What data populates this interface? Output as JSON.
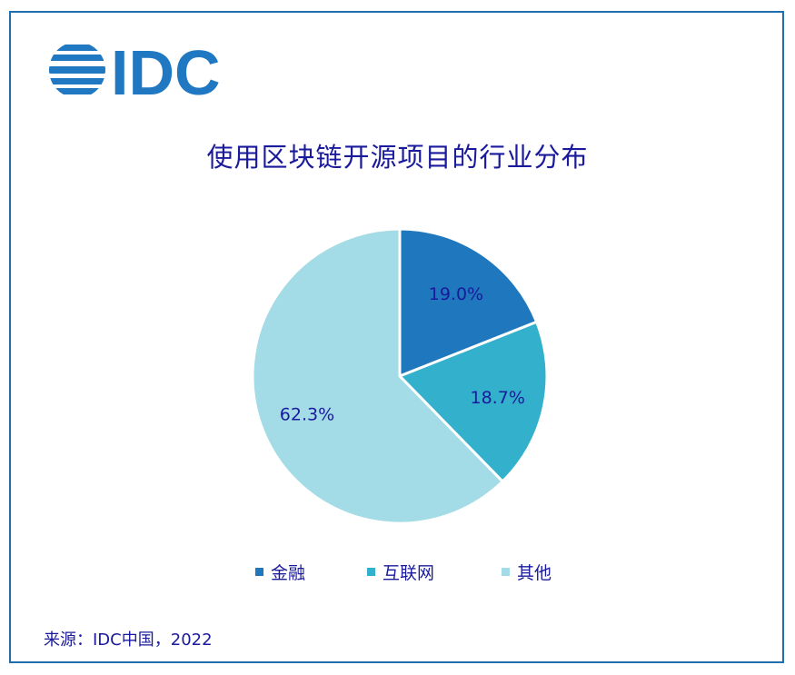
{
  "logo_text": "IDC",
  "title": "使用区块链开源项目的行业分布",
  "source": "来源：IDC中国，2022",
  "colors": {
    "border": "#1f6fae",
    "logo": "#1f78c1",
    "text": "#1a1a9c"
  },
  "chart_data": {
    "type": "pie",
    "title": "使用区块链开源项目的行业分布",
    "slices": [
      {
        "label": "金融",
        "value": 19.0,
        "display": "19.0%",
        "color": "#1f78bd"
      },
      {
        "label": "互联网",
        "value": 18.7,
        "display": "18.7%",
        "color": "#33b0cb"
      },
      {
        "label": "其他",
        "value": 62.3,
        "display": "62.3%",
        "color": "#a3dbe6"
      }
    ],
    "legend_placement": "bottom"
  }
}
